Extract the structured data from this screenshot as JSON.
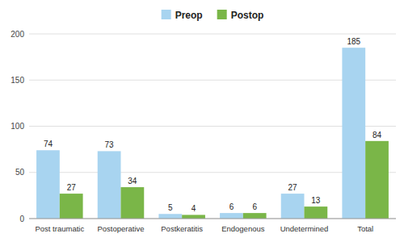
{
  "chart_data": {
    "type": "bar",
    "categories": [
      "Post traumatic",
      "Postoperative",
      "Postkeratitis",
      "Endogenous",
      "Undetermined",
      "Total"
    ],
    "series": [
      {
        "name": "Preop",
        "color": "#a8d4f0",
        "values": [
          74,
          73,
          5,
          6,
          27,
          185
        ]
      },
      {
        "name": "Postop",
        "color": "#7ab648",
        "values": [
          27,
          34,
          4,
          6,
          13,
          84
        ]
      }
    ],
    "ylim": [
      0,
      200
    ],
    "yticks": [
      0,
      50,
      100,
      150,
      200
    ],
    "grid": true,
    "legend": "top",
    "data_labels": true
  }
}
